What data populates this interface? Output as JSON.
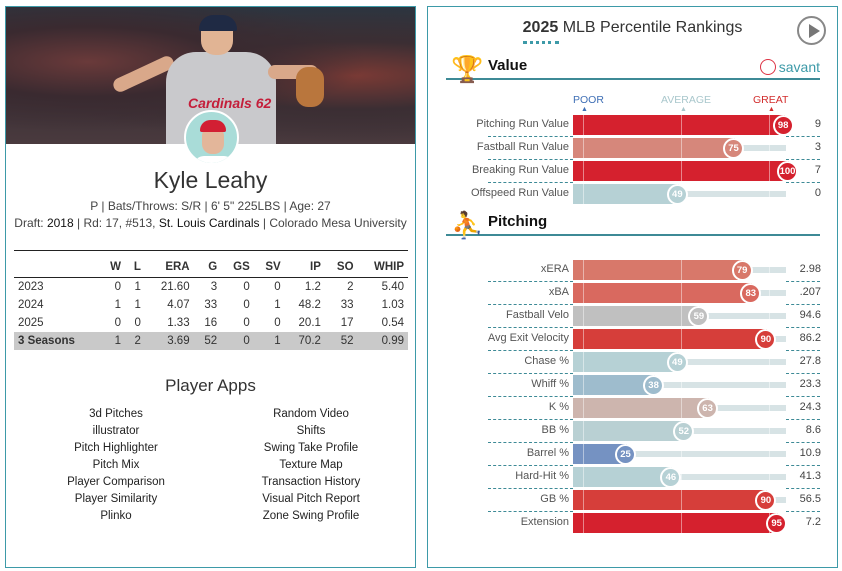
{
  "player": {
    "name": "Kyle Leahy",
    "bio": "P | Bats/Throws: S/R | 6' 5\" 225LBS | Age: 27",
    "draft_label": "Draft: ",
    "draft_year": "2018",
    "draft_mid": " | Rd: 17, #513, ",
    "draft_team": "St. Louis Cardinals",
    "draft_school": " | Colorado Mesa University",
    "jersey_text": "Cardinals 62"
  },
  "stats": {
    "headers": [
      "",
      "W",
      "L",
      "ERA",
      "G",
      "GS",
      "SV",
      "IP",
      "SO",
      "WHIP"
    ],
    "rows": [
      [
        "2023",
        "0",
        "1",
        "21.60",
        "3",
        "0",
        "0",
        "1.2",
        "2",
        "5.40"
      ],
      [
        "2024",
        "1",
        "1",
        "4.07",
        "33",
        "0",
        "1",
        "48.2",
        "33",
        "1.03"
      ],
      [
        "2025",
        "0",
        "0",
        "1.33",
        "16",
        "0",
        "0",
        "20.1",
        "17",
        "0.54"
      ],
      [
        "3 Seasons",
        "1",
        "2",
        "3.69",
        "52",
        "0",
        "1",
        "70.2",
        "52",
        "0.99"
      ]
    ]
  },
  "apps": {
    "title": "Player Apps",
    "left": [
      "3d Pitches",
      "illustrator",
      "Pitch Highlighter",
      "Pitch Mix",
      "Player Comparison",
      "Player Similarity",
      "Plinko"
    ],
    "right": [
      "Random Video",
      "Shifts",
      "Swing Take Profile",
      "Texture Map",
      "Transaction History",
      "Visual Pitch Report",
      "Zone Swing Profile"
    ]
  },
  "rankings": {
    "year": "2025",
    "title": " MLB Percentile Rankings",
    "brand": "savant",
    "scale": {
      "poor": "POOR",
      "average": "AVERAGE",
      "great": "GREAT"
    },
    "colors": {
      "poor": "#3f6fb5",
      "average": "#a9c7cc",
      "great": "#d22d2d"
    },
    "sections": [
      {
        "title": "Value",
        "icon": "trophy-icon",
        "rows": [
          {
            "label": "Pitching Run Value",
            "pct": 98,
            "value": "9",
            "color": "#d5212e"
          },
          {
            "label": "Fastball Run Value",
            "pct": 75,
            "value": "3",
            "color": "#d6877b"
          },
          {
            "label": "Breaking Run Value",
            "pct": 100,
            "value": "7",
            "color": "#d5212e"
          },
          {
            "label": "Offspeed Run Value",
            "pct": 49,
            "value": "0",
            "color": "#b6d1d5"
          }
        ]
      },
      {
        "title": "Pitching",
        "icon": "pitcher-icon",
        "rows": [
          {
            "label": "xERA",
            "pct": 79,
            "value": "2.98",
            "color": "#d8786a"
          },
          {
            "label": "xBA",
            "pct": 83,
            "value": ".207",
            "color": "#d9695f"
          },
          {
            "label": "Fastball Velo",
            "pct": 59,
            "value": "94.6",
            "color": "#c0c0c0"
          },
          {
            "label": "Avg Exit Velocity",
            "pct": 90,
            "value": "86.2",
            "color": "#d63e3a"
          },
          {
            "label": "Chase %",
            "pct": 49,
            "value": "27.8",
            "color": "#b6d1d5"
          },
          {
            "label": "Whiff %",
            "pct": 38,
            "value": "23.3",
            "color": "#9ebccd"
          },
          {
            "label": "K %",
            "pct": 63,
            "value": "24.3",
            "color": "#cdb5ae"
          },
          {
            "label": "BB %",
            "pct": 52,
            "value": "8.6",
            "color": "#b9d0d3"
          },
          {
            "label": "Barrel %",
            "pct": 25,
            "value": "10.9",
            "color": "#7592c2"
          },
          {
            "label": "Hard-Hit %",
            "pct": 46,
            "value": "41.3",
            "color": "#b6d1d5"
          },
          {
            "label": "GB %",
            "pct": 90,
            "value": "56.5",
            "color": "#d63e3a"
          },
          {
            "label": "Extension",
            "pct": 95,
            "value": "7.2",
            "color": "#d5212e"
          }
        ]
      }
    ]
  }
}
